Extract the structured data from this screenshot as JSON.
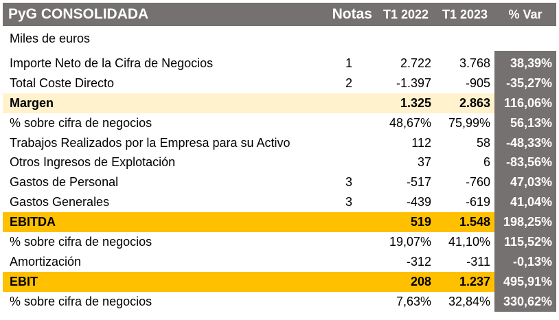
{
  "header": {
    "title": "PyG CONSOLIDADA",
    "notas": "Notas",
    "col_t1_2022": "T1 2022",
    "col_t1_2023": "T1 2023",
    "col_var": "% Var"
  },
  "subtitle": "Miles de euros",
  "rows": [
    {
      "label": "Importe Neto de la Cifra de Negocios",
      "nota": "1",
      "t1_2022": "2.722",
      "t1_2023": "3.768",
      "var": "38,39%"
    },
    {
      "label": "Total Coste Directo",
      "nota": "2",
      "t1_2022": "-1.397",
      "t1_2023": "-905",
      "var": "-35,27%"
    },
    {
      "label": "Margen",
      "nota": "",
      "t1_2022": "1.325",
      "t1_2023": "2.863",
      "var": "116,06%"
    },
    {
      "label": "% sobre cifra de negocios",
      "nota": "",
      "t1_2022": "48,67%",
      "t1_2023": "75,99%",
      "var": "56,13%"
    },
    {
      "label": "Trabajos Realizados por la Empresa para su Activo",
      "nota": "",
      "t1_2022": "112",
      "t1_2023": "58",
      "var": "-48,33%"
    },
    {
      "label": "Otros Ingresos de Explotación",
      "nota": "",
      "t1_2022": "37",
      "t1_2023": "6",
      "var": "-83,56%"
    },
    {
      "label": "Gastos de Personal",
      "nota": "3",
      "t1_2022": "-517",
      "t1_2023": "-760",
      "var": "47,03%"
    },
    {
      "label": "Gastos Generales",
      "nota": "3",
      "t1_2022": "-439",
      "t1_2023": "-619",
      "var": "41,04%"
    },
    {
      "label": "EBITDA",
      "nota": "",
      "t1_2022": "519",
      "t1_2023": "1.548",
      "var": "198,25%"
    },
    {
      "label": "% sobre cifra de negocios",
      "nota": "",
      "t1_2022": "19,07%",
      "t1_2023": "41,10%",
      "var": "115,52%"
    },
    {
      "label": "Amortización",
      "nota": "",
      "t1_2022": "-312",
      "t1_2023": "-311",
      "var": "-0,13%"
    },
    {
      "label": "EBIT",
      "nota": "",
      "t1_2022": "208",
      "t1_2023": "1.237",
      "var": "495,91%"
    },
    {
      "label": "% sobre cifra de negocios",
      "nota": "",
      "t1_2022": "7,63%",
      "t1_2023": "32,84%",
      "var": "330,62%"
    }
  ],
  "colors": {
    "header_bg": "#767171",
    "margen_bg": "#fff2cc",
    "ebitda_bg": "#ffc000",
    "var_bg": "#767171"
  }
}
